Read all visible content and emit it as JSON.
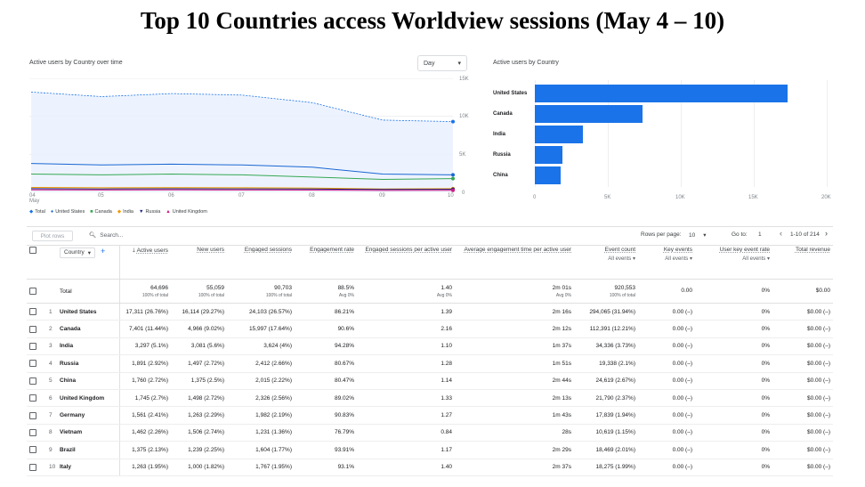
{
  "title": "Top 10 Countries access Worldview sessions (May 4 – 10)",
  "line_card": {
    "title": "Active users by Country over time",
    "dropdown": "Day",
    "y_ticks": [
      "15K",
      "10K",
      "5K",
      "0"
    ],
    "x_ticks": [
      "04",
      "05",
      "06",
      "07",
      "08",
      "09",
      "10"
    ],
    "x_month": "May",
    "legend": [
      "Total",
      "United States",
      "Canada",
      "India",
      "Russia",
      "United Kingdom"
    ]
  },
  "bar_card": {
    "title": "Active users by Country",
    "x_ticks": [
      "0",
      "5K",
      "10K",
      "15K",
      "20K"
    ]
  },
  "chart_data": [
    {
      "type": "line",
      "x": [
        "May 4",
        "May 5",
        "May 6",
        "May 7",
        "May 8",
        "May 9",
        "May 10"
      ],
      "ylim": [
        0,
        15000
      ],
      "series": [
        {
          "name": "Total",
          "color": "#1a73e8",
          "values": [
            13200,
            12600,
            13000,
            12800,
            11800,
            9500,
            9300
          ]
        },
        {
          "name": "United States",
          "color": "#1967d2",
          "values": [
            3800,
            3600,
            3700,
            3600,
            3300,
            2400,
            2300
          ]
        },
        {
          "name": "Canada",
          "color": "#34a853",
          "values": [
            2400,
            2300,
            2400,
            2300,
            2000,
            1700,
            1800
          ]
        },
        {
          "name": "India",
          "color": "#f29900",
          "values": [
            650,
            600,
            620,
            600,
            560,
            450,
            480
          ]
        },
        {
          "name": "Russia",
          "color": "#1a237e",
          "values": [
            480,
            450,
            470,
            460,
            430,
            380,
            400
          ]
        },
        {
          "name": "United Kingdom",
          "color": "#d01884",
          "values": [
            330,
            300,
            320,
            310,
            290,
            250,
            260
          ]
        }
      ]
    },
    {
      "type": "bar",
      "categories": [
        "United States",
        "Canada",
        "India",
        "Russia",
        "China"
      ],
      "values": [
        17311,
        7401,
        3297,
        1891,
        1760
      ],
      "xlim": [
        0,
        20000
      ]
    }
  ],
  "toolbar": {
    "plot_rows": "Plot rows",
    "search": "Search...",
    "rows_per_page_label": "Rows per page:",
    "rows_per_page": "10",
    "goto_label": "Go to:",
    "goto_value": "1",
    "range": "1-10 of 214"
  },
  "table": {
    "dimension": "Country",
    "headers": [
      {
        "label": "Active users",
        "sub": ""
      },
      {
        "label": "New users",
        "sub": ""
      },
      {
        "label": "Engaged sessions",
        "sub": ""
      },
      {
        "label": "Engagement rate",
        "sub": ""
      },
      {
        "label": "Engaged sessions per active user",
        "sub": ""
      },
      {
        "label": "Average engagement time per active user",
        "sub": ""
      },
      {
        "label": "Event count",
        "sub": "All events"
      },
      {
        "label": "Key events",
        "sub": "All events"
      },
      {
        "label": "User key event rate",
        "sub": "All events"
      },
      {
        "label": "Total revenue",
        "sub": ""
      }
    ],
    "total": {
      "label": "Total",
      "values": [
        "64,696",
        "55,059",
        "90,703",
        "88.5%",
        "1.40",
        "2m 01s",
        "920,553",
        "0.00",
        "0%",
        "$0.00"
      ],
      "subs": [
        "100% of total",
        "100% of total",
        "100% of total",
        "Avg 0%",
        "Avg 0%",
        "Avg 0%",
        "100% of total",
        "",
        "",
        ""
      ]
    },
    "rows": [
      [
        "1",
        "United States",
        "17,311 (26.76%)",
        "16,114 (29.27%)",
        "24,103 (26.57%)",
        "86.21%",
        "1.39",
        "2m 16s",
        "294,065 (31.94%)",
        "0.00 (–)",
        "0%",
        "$0.00 (–)"
      ],
      [
        "2",
        "Canada",
        "7,401 (11.44%)",
        "4,966 (9.02%)",
        "15,997 (17.64%)",
        "90.6%",
        "2.16",
        "2m 12s",
        "112,391 (12.21%)",
        "0.00 (–)",
        "0%",
        "$0.00 (–)"
      ],
      [
        "3",
        "India",
        "3,297 (5.1%)",
        "3,081 (5.6%)",
        "3,624 (4%)",
        "94.28%",
        "1.10",
        "1m 37s",
        "34,336 (3.73%)",
        "0.00 (–)",
        "0%",
        "$0.00 (–)"
      ],
      [
        "4",
        "Russia",
        "1,891 (2.92%)",
        "1,497 (2.72%)",
        "2,412 (2.66%)",
        "80.67%",
        "1.28",
        "1m 51s",
        "19,338 (2.1%)",
        "0.00 (–)",
        "0%",
        "$0.00 (–)"
      ],
      [
        "5",
        "China",
        "1,760 (2.72%)",
        "1,375 (2.5%)",
        "2,015 (2.22%)",
        "80.47%",
        "1.14",
        "2m 44s",
        "24,619 (2.67%)",
        "0.00 (–)",
        "0%",
        "$0.00 (–)"
      ],
      [
        "6",
        "United Kingdom",
        "1,745 (2.7%)",
        "1,498 (2.72%)",
        "2,326 (2.56%)",
        "89.02%",
        "1.33",
        "2m 13s",
        "21,790 (2.37%)",
        "0.00 (–)",
        "0%",
        "$0.00 (–)"
      ],
      [
        "7",
        "Germany",
        "1,561 (2.41%)",
        "1,263 (2.29%)",
        "1,982 (2.19%)",
        "90.83%",
        "1.27",
        "1m 43s",
        "17,839 (1.94%)",
        "0.00 (–)",
        "0%",
        "$0.00 (–)"
      ],
      [
        "8",
        "Vietnam",
        "1,462 (2.26%)",
        "1,506 (2.74%)",
        "1,231 (1.36%)",
        "76.79%",
        "0.84",
        "28s",
        "10,619 (1.15%)",
        "0.00 (–)",
        "0%",
        "$0.00 (–)"
      ],
      [
        "9",
        "Brazil",
        "1,375 (2.13%)",
        "1,239 (2.25%)",
        "1,604 (1.77%)",
        "93.91%",
        "1.17",
        "2m 29s",
        "18,469 (2.01%)",
        "0.00 (–)",
        "0%",
        "$0.00 (–)"
      ],
      [
        "10",
        "Italy",
        "1,263 (1.95%)",
        "1,000 (1.82%)",
        "1,767 (1.95%)",
        "93.1%",
        "1.40",
        "2m 37s",
        "18,275 (1.99%)",
        "0.00 (–)",
        "0%",
        "$0.00 (–)"
      ]
    ]
  }
}
